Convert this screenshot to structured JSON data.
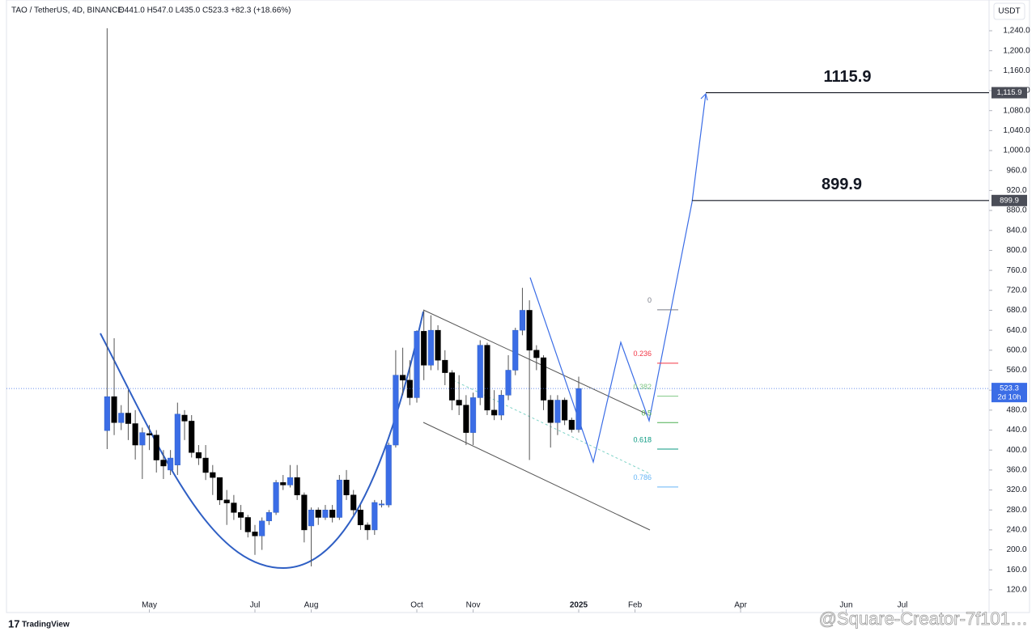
{
  "chart_data": {
    "type": "candlestick",
    "title": "TAO / TetherUS, 4D, BINANCE",
    "ohlc_text": "O441.0 H547.0 L435.0 C523.3 +82.3 (+18.66%)",
    "currency": "USDT",
    "brand": "TradingView",
    "watermark": "@Square-Creator-7f101…",
    "up_color": "#3b6de6",
    "down_color": "#000000",
    "open": [
      439,
      507,
      455,
      474,
      453,
      410,
      433,
      430,
      380,
      360,
      370,
      470,
      458,
      395,
      384,
      355,
      345,
      300,
      294,
      275,
      265,
      236,
      228,
      258,
      275,
      335,
      330,
      345,
      310,
      248,
      280,
      265,
      280,
      265,
      340,
      310,
      280,
      250,
      240,
      290,
      290,
      410,
      550,
      540,
      505,
      638,
      570,
      640,
      580,
      555,
      500,
      490,
      435,
      505,
      610,
      480,
      470,
      510,
      560,
      640,
      680,
      600,
      585,
      500,
      455,
      500,
      460,
      441.0
    ],
    "high": [
      1245,
      624,
      490,
      520,
      480,
      445,
      450,
      440,
      400,
      400,
      495,
      480,
      470,
      410,
      410,
      370,
      345,
      320,
      310,
      290,
      270,
      250,
      265,
      280,
      340,
      350,
      370,
      370,
      315,
      285,
      285,
      290,
      290,
      350,
      360,
      320,
      290,
      255,
      300,
      300,
      415,
      600,
      605,
      580,
      640,
      680,
      670,
      650,
      600,
      560,
      550,
      510,
      515,
      620,
      615,
      520,
      520,
      590,
      645,
      725,
      700,
      610,
      590,
      510,
      510,
      505,
      465,
      547.0
    ],
    "low": [
      402,
      430,
      440,
      420,
      381,
      342,
      400,
      355,
      342,
      350,
      350,
      420,
      385,
      370,
      340,
      310,
      290,
      250,
      260,
      240,
      225,
      190,
      200,
      250,
      270,
      320,
      325,
      300,
      215,
      167,
      250,
      260,
      255,
      260,
      300,
      270,
      240,
      220,
      230,
      285,
      285,
      405,
      510,
      490,
      495,
      540,
      560,
      560,
      530,
      480,
      470,
      410,
      410,
      490,
      470,
      460,
      460,
      500,
      550,
      630,
      380,
      560,
      480,
      405,
      430,
      450,
      435,
      435.0
    ],
    "close": [
      507,
      455,
      474,
      453,
      410,
      435,
      430,
      380,
      368,
      384,
      472,
      458,
      395,
      384,
      355,
      345,
      300,
      294,
      275,
      265,
      236,
      228,
      258,
      275,
      335,
      330,
      345,
      310,
      240,
      280,
      265,
      280,
      265,
      340,
      310,
      280,
      250,
      240,
      295,
      292,
      410,
      550,
      540,
      505,
      638,
      570,
      640,
      580,
      555,
      500,
      490,
      435,
      505,
      610,
      480,
      470,
      510,
      560,
      640,
      680,
      600,
      585,
      500,
      455,
      500,
      460,
      441,
      523.3
    ],
    "xlim": [
      -14.3,
      125.3
    ],
    "xticks": [
      {
        "value": 6,
        "label": "May"
      },
      {
        "value": 21,
        "label": "Jul"
      },
      {
        "value": 29,
        "label": "Aug"
      },
      {
        "value": 44,
        "label": "Oct"
      },
      {
        "value": 52,
        "label": "Nov"
      },
      {
        "value": 67,
        "label": "2025"
      },
      {
        "value": 75,
        "label": "Feb"
      },
      {
        "value": 90,
        "label": "Apr"
      },
      {
        "value": 105,
        "label": "Jun"
      },
      {
        "value": 113,
        "label": "Jul"
      }
    ],
    "ylim": [
      74.5,
      1301.6
    ],
    "yticks": [
      {
        "value": 120,
        "label": "120.0"
      },
      {
        "value": 160,
        "label": "160.0"
      },
      {
        "value": 200,
        "label": "200.0"
      },
      {
        "value": 240,
        "label": "240.0"
      },
      {
        "value": 280,
        "label": "280.0"
      },
      {
        "value": 320,
        "label": "320.0"
      },
      {
        "value": 360,
        "label": "360.0"
      },
      {
        "value": 400,
        "label": "400.0"
      },
      {
        "value": 440,
        "label": "440.0"
      },
      {
        "value": 480,
        "label": "480.0"
      },
      {
        "value": 520,
        "label": "520.0"
      },
      {
        "value": 560,
        "label": "560.0"
      },
      {
        "value": 600,
        "label": "600.0"
      },
      {
        "value": 640,
        "label": "640.0"
      },
      {
        "value": 680,
        "label": "680.0"
      },
      {
        "value": 720,
        "label": "720.0"
      },
      {
        "value": 760,
        "label": "760.0"
      },
      {
        "value": 800,
        "label": "800.0"
      },
      {
        "value": 840,
        "label": "840.0"
      },
      {
        "value": 880,
        "label": "880.0"
      },
      {
        "value": 920,
        "label": "920.0"
      },
      {
        "value": 960,
        "label": "960.0"
      },
      {
        "value": 1000,
        "label": "1,000.0"
      },
      {
        "value": 1040,
        "label": "1,040.0"
      },
      {
        "value": 1080,
        "label": "1,080.0"
      },
      {
        "value": 1120,
        "label": "1,120.0"
      },
      {
        "value": 1160,
        "label": "1,160.0"
      },
      {
        "value": 1200,
        "label": "1,200.0"
      },
      {
        "value": 1240,
        "label": "1,240.0"
      }
    ],
    "levels": [
      {
        "value": 1115.9,
        "label": "1115.9",
        "axis_label": "1,115.9"
      },
      {
        "value": 899.9,
        "label": "899.9",
        "axis_label": "899.9"
      }
    ],
    "last_price": {
      "value": 523.3,
      "label": "523.3",
      "countdown": "2d 10h"
    },
    "fib": [
      {
        "ratio": 0,
        "value": 681,
        "color": "#787b86"
      },
      {
        "ratio": 0.236,
        "value": 574,
        "color": "#f23645"
      },
      {
        "ratio": 0.382,
        "value": 508,
        "color": "#81c784"
      },
      {
        "ratio": 0.5,
        "value": 455,
        "color": "#4caf50"
      },
      {
        "ratio": 0.618,
        "value": 402,
        "color": "#089981"
      },
      {
        "ratio": 0.786,
        "value": 326,
        "color": "#64b5f6"
      }
    ]
  }
}
